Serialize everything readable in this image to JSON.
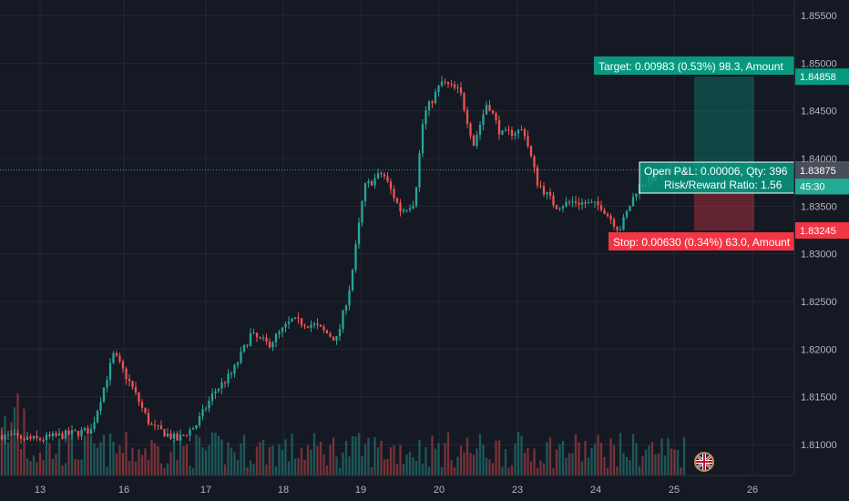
{
  "chart_data": {
    "type": "candlestick",
    "title": "",
    "xlabel": "",
    "ylabel": "",
    "ylim": [
      1.8065,
      1.857
    ],
    "y_ticks": [
      "1.85500",
      "1.85000",
      "1.84500",
      "1.84000",
      "1.83500",
      "1.83000",
      "1.82500",
      "1.82000",
      "1.81500",
      "1.81000"
    ],
    "x_ticks": [
      "13",
      "16",
      "17",
      "18",
      "19",
      "20",
      "23",
      "24",
      "25",
      "26"
    ],
    "current_price": "1.83881",
    "countdown": "45:30",
    "secondary_price": "1.83875",
    "target_price": "1.84858",
    "stop_price": "1.83245",
    "labels": {
      "target": "Target: 0.00983 (0.53%) 98.3, Amount",
      "stop": "Stop: 0.00630 (0.34%) 63.0, Amount",
      "pnl": "Open P&L: 0.00006, Qty: 396",
      "rr": "Risk/Reward Ratio: 1.56"
    },
    "colors": {
      "up": "#26a69a",
      "down": "#ef5350",
      "target": "#089981",
      "stop": "#f23645",
      "background": "#151924",
      "grid": "#242833",
      "price_line": "#26a69a"
    },
    "grid": true,
    "legend": "none"
  }
}
